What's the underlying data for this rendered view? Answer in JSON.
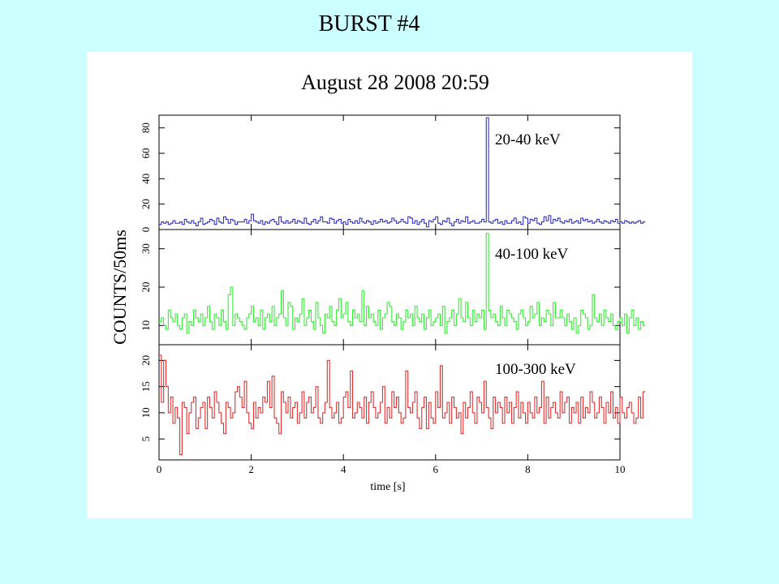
{
  "slide": {
    "title": "BURST #4"
  },
  "chart_data": {
    "type": "line",
    "title": "August 28 2008 20:59",
    "xlabel": "time [s]",
    "ylabel": "COUNTS/50ms",
    "bin_width_s": 0.05,
    "x_start": 0,
    "xlim": [
      0,
      10
    ],
    "x_ticks": [
      "0",
      "2",
      "4",
      "6",
      "8",
      "10"
    ],
    "grid": false,
    "panels": [
      {
        "name": "20-40 keV",
        "color": "#3333cc",
        "ylim": [
          0,
          90
        ],
        "y_ticks": [
          "0",
          "20",
          "40",
          "60",
          "80"
        ],
        "values": [
          4,
          6,
          5,
          6,
          4,
          5,
          7,
          5,
          5,
          6,
          4,
          8,
          6,
          5,
          7,
          5,
          3,
          6,
          9,
          4,
          5,
          6,
          8,
          7,
          4,
          9,
          6,
          5,
          10,
          8,
          5,
          8,
          7,
          4,
          6,
          6,
          6,
          8,
          5,
          7,
          12,
          7,
          6,
          5,
          7,
          4,
          6,
          5,
          7,
          8,
          6,
          4,
          10,
          6,
          5,
          7,
          5,
          6,
          8,
          5,
          7,
          6,
          5,
          9,
          5,
          4,
          6,
          8,
          5,
          7,
          10,
          6,
          6,
          5,
          9,
          8,
          5,
          7,
          8,
          5,
          6,
          4,
          8,
          6,
          5,
          7,
          5,
          9,
          6,
          5,
          7,
          6,
          4,
          7,
          5,
          6,
          8,
          6,
          7,
          5,
          6,
          9,
          7,
          5,
          6,
          8,
          6,
          5,
          10,
          9,
          5,
          7,
          4,
          6,
          8,
          5,
          2,
          7,
          6,
          8,
          10,
          5,
          4,
          7,
          6,
          9,
          5,
          3,
          6,
          8,
          5,
          7,
          6,
          10,
          5,
          6,
          7,
          5,
          5,
          6,
          8,
          6,
          88,
          6,
          5,
          7,
          8,
          5,
          6,
          4,
          7,
          5,
          5,
          7,
          9,
          5,
          6,
          4,
          10,
          9,
          5,
          8,
          7,
          9,
          5,
          4,
          6,
          10,
          7,
          11,
          5,
          8,
          7,
          9,
          6,
          5,
          7,
          6,
          8,
          5,
          6,
          7,
          5,
          9,
          7,
          8,
          6,
          7,
          5,
          6,
          8,
          6,
          5,
          7,
          6,
          5,
          7,
          6,
          8,
          5,
          6,
          5,
          7,
          6,
          5,
          6,
          5,
          6,
          7,
          5,
          6
        ]
      },
      {
        "name": "40-100 keV",
        "color": "#33ee33",
        "ylim": [
          5,
          35
        ],
        "y_ticks": [
          "10",
          "20",
          "30"
        ],
        "values": [
          11,
          12,
          10,
          9,
          14,
          12,
          11,
          13,
          10,
          9,
          12,
          13,
          8,
          11,
          10,
          14,
          12,
          11,
          13,
          10,
          12,
          15,
          11,
          9,
          13,
          12,
          10,
          14,
          11,
          9,
          18,
          20,
          10,
          13,
          12,
          11,
          10,
          9,
          12,
          13,
          15,
          11,
          12,
          10,
          14,
          9,
          12,
          13,
          11,
          15,
          10,
          12,
          13,
          19,
          12,
          10,
          16,
          15,
          9,
          12,
          11,
          13,
          17,
          10,
          12,
          14,
          11,
          9,
          16,
          12,
          10,
          8,
          13,
          12,
          15,
          11,
          10,
          14,
          17,
          12,
          13,
          16,
          11,
          10,
          14,
          12,
          13,
          11,
          19,
          10,
          15,
          12,
          13,
          11,
          10,
          14,
          9,
          12,
          13,
          16,
          15,
          11,
          10,
          13,
          12,
          9,
          11,
          14,
          12,
          13,
          10,
          15,
          12,
          11,
          13,
          9,
          12,
          14,
          10,
          11,
          12,
          13,
          10,
          15,
          8,
          11,
          12,
          14,
          10,
          13,
          17,
          12,
          11,
          16,
          12,
          10,
          14,
          11,
          13,
          12,
          14,
          9,
          34,
          14,
          12,
          13,
          11,
          10,
          15,
          12,
          10,
          14,
          13,
          12,
          11,
          9,
          13,
          14,
          12,
          10,
          11,
          15,
          12,
          13,
          16,
          10,
          12,
          11,
          14,
          13,
          10,
          16,
          12,
          12,
          14,
          12,
          10,
          13,
          11,
          9,
          12,
          8,
          10,
          14,
          13,
          12,
          9,
          10,
          18,
          12,
          11,
          13,
          10,
          14,
          12,
          11,
          13,
          10,
          9,
          11,
          12,
          10,
          13,
          8,
          12,
          14,
          10,
          12,
          9,
          11,
          10
        ]
      },
      {
        "name": "100-300 keV",
        "color": "#dd3333",
        "ylim": [
          1,
          23
        ],
        "y_ticks": [
          "5",
          "10",
          "15",
          "20"
        ],
        "values": [
          21,
          12,
          20,
          15,
          10,
          13,
          8,
          11,
          9,
          2,
          12,
          11,
          6,
          10,
          12,
          13,
          7,
          9,
          11,
          12,
          7,
          13,
          11,
          9,
          14,
          12,
          10,
          8,
          6,
          12,
          11,
          9,
          10,
          14,
          15,
          13,
          11,
          16,
          10,
          8,
          7,
          12,
          9,
          11,
          10,
          13,
          12,
          16,
          11,
          17,
          9,
          8,
          6,
          14,
          12,
          10,
          13,
          9,
          11,
          12,
          8,
          10,
          14,
          9,
          12,
          13,
          10,
          11,
          15,
          9,
          8,
          10,
          12,
          20,
          11,
          9,
          10,
          12,
          8,
          9,
          13,
          14,
          11,
          18,
          9,
          10,
          12,
          11,
          9,
          13,
          8,
          12,
          14,
          11,
          9,
          10,
          12,
          15,
          8,
          11,
          9,
          14,
          11,
          13,
          10,
          8,
          9,
          18,
          11,
          10,
          12,
          14,
          9,
          7,
          11,
          13,
          7,
          12,
          9,
          8,
          14,
          11,
          19,
          9,
          10,
          12,
          8,
          13,
          11,
          9,
          10,
          6,
          12,
          9,
          11,
          14,
          10,
          8,
          13,
          12,
          10,
          16,
          11,
          9,
          7,
          13,
          10,
          12,
          11,
          8,
          13,
          10,
          12,
          8,
          11,
          14,
          9,
          12,
          10,
          8,
          12,
          10,
          9,
          13,
          10,
          11,
          16,
          8,
          13,
          9,
          11,
          12,
          10,
          9,
          14,
          10,
          12,
          13,
          8,
          11,
          10,
          12,
          8,
          13,
          9,
          11,
          10,
          14,
          12,
          9,
          10,
          13,
          11,
          8,
          12,
          10,
          14,
          9,
          11,
          8,
          13,
          10,
          9,
          11,
          12,
          10,
          8,
          9,
          13,
          9,
          14
        ]
      }
    ]
  }
}
